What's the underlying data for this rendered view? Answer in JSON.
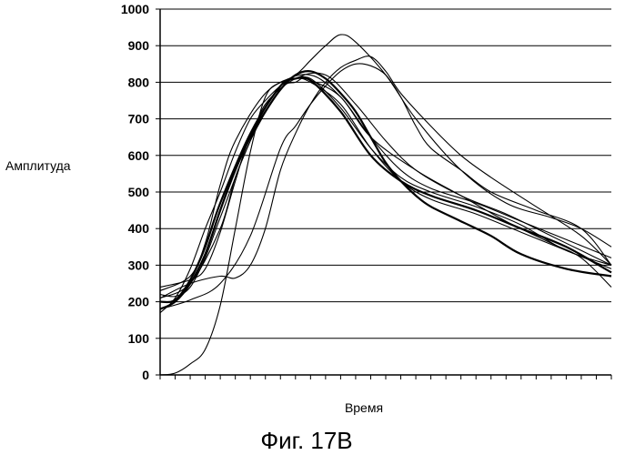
{
  "chart_data": {
    "type": "line",
    "xlabel": "Время",
    "ylabel": "Амплитуда",
    "caption": "Фиг. 17B",
    "ylim": [
      0,
      1000
    ],
    "yticks": [
      0,
      100,
      200,
      300,
      400,
      500,
      600,
      700,
      800,
      900,
      1000
    ],
    "xlim": [
      0,
      30
    ],
    "x_tick_count": 30,
    "grid": "horizontal",
    "legend": "none",
    "line_color": "#000000",
    "series": [
      {
        "x": [
          0,
          2,
          3,
          4,
          5,
          7,
          9,
          10,
          11,
          12,
          13,
          15,
          17,
          20,
          23,
          26,
          28,
          30
        ],
        "values": [
          230,
          270,
          360,
          520,
          640,
          770,
          820,
          860,
          900,
          930,
          910,
          820,
          700,
          560,
          470,
          430,
          400,
          350
        ]
      },
      {
        "x": [
          0,
          2,
          4,
          5,
          6,
          7,
          9,
          11,
          13,
          15,
          17,
          20,
          23,
          26,
          28,
          30
        ],
        "values": [
          210,
          250,
          400,
          540,
          640,
          740,
          810,
          820,
          740,
          640,
          560,
          490,
          440,
          380,
          340,
          300
        ]
      },
      {
        "x": [
          0,
          2,
          3,
          4,
          5,
          6,
          8,
          10,
          12,
          14,
          16,
          18,
          21,
          24,
          27,
          30
        ],
        "values": [
          240,
          260,
          290,
          390,
          530,
          650,
          790,
          820,
          760,
          650,
          560,
          510,
          470,
          420,
          370,
          320
        ]
      },
      {
        "x": [
          0,
          1,
          2,
          3,
          4,
          6,
          8,
          9,
          10,
          12,
          14,
          16,
          18,
          21,
          24,
          27,
          30
        ],
        "values": [
          200,
          205,
          260,
          350,
          470,
          660,
          790,
          810,
          805,
          720,
          600,
          530,
          490,
          450,
          400,
          350,
          280
        ]
      },
      {
        "x": [
          0,
          1,
          2,
          3,
          4,
          6,
          8,
          9,
          10,
          12,
          14,
          16,
          18,
          21,
          24,
          27,
          30
        ],
        "values": [
          220,
          215,
          240,
          320,
          430,
          640,
          780,
          800,
          810,
          730,
          620,
          540,
          500,
          460,
          410,
          340,
          300
        ]
      },
      {
        "x": [
          0,
          1,
          2,
          3,
          4,
          5,
          6,
          7,
          8,
          9,
          10,
          11,
          12,
          13,
          14,
          15,
          16,
          17,
          18,
          20,
          22,
          24,
          27,
          30
        ],
        "values": [
          180,
          200,
          250,
          330,
          450,
          560,
          650,
          720,
          780,
          820,
          830,
          810,
          770,
          720,
          650,
          580,
          530,
          490,
          460,
          420,
          380,
          330,
          290,
          270
        ]
      },
      {
        "x": [
          0,
          1,
          2,
          3,
          4,
          5,
          6,
          7,
          8,
          9,
          10,
          12,
          14,
          16,
          18,
          21,
          24,
          27,
          30
        ],
        "values": [
          170,
          210,
          290,
          400,
          500,
          610,
          700,
          750,
          790,
          810,
          800,
          740,
          620,
          530,
          480,
          440,
          390,
          340,
          290
        ]
      },
      {
        "x": [
          0,
          2,
          4,
          5,
          6,
          7,
          8,
          9,
          10,
          11,
          12,
          13,
          14,
          15,
          16,
          18,
          20,
          22,
          25,
          28,
          30
        ],
        "values": [
          210,
          250,
          270,
          265,
          300,
          400,
          560,
          660,
          740,
          800,
          840,
          860,
          870,
          830,
          770,
          680,
          600,
          540,
          460,
          380,
          300
        ]
      },
      {
        "x": [
          0,
          2,
          4,
          6,
          8,
          9,
          10,
          11,
          12,
          13,
          14,
          15,
          16,
          17,
          18,
          20,
          22,
          25,
          28,
          30
        ],
        "values": [
          180,
          205,
          250,
          380,
          620,
          680,
          740,
          790,
          830,
          850,
          845,
          820,
          760,
          680,
          620,
          560,
          500,
          450,
          400,
          300
        ]
      },
      {
        "x": [
          0,
          1,
          2,
          3,
          4,
          5,
          6,
          7,
          8,
          9,
          10,
          12,
          14,
          17,
          20,
          23,
          26,
          28,
          30
        ],
        "values": [
          0,
          5,
          30,
          70,
          190,
          400,
          610,
          760,
          800,
          810,
          805,
          760,
          650,
          560,
          490,
          420,
          360,
          320,
          240
        ]
      }
    ]
  }
}
